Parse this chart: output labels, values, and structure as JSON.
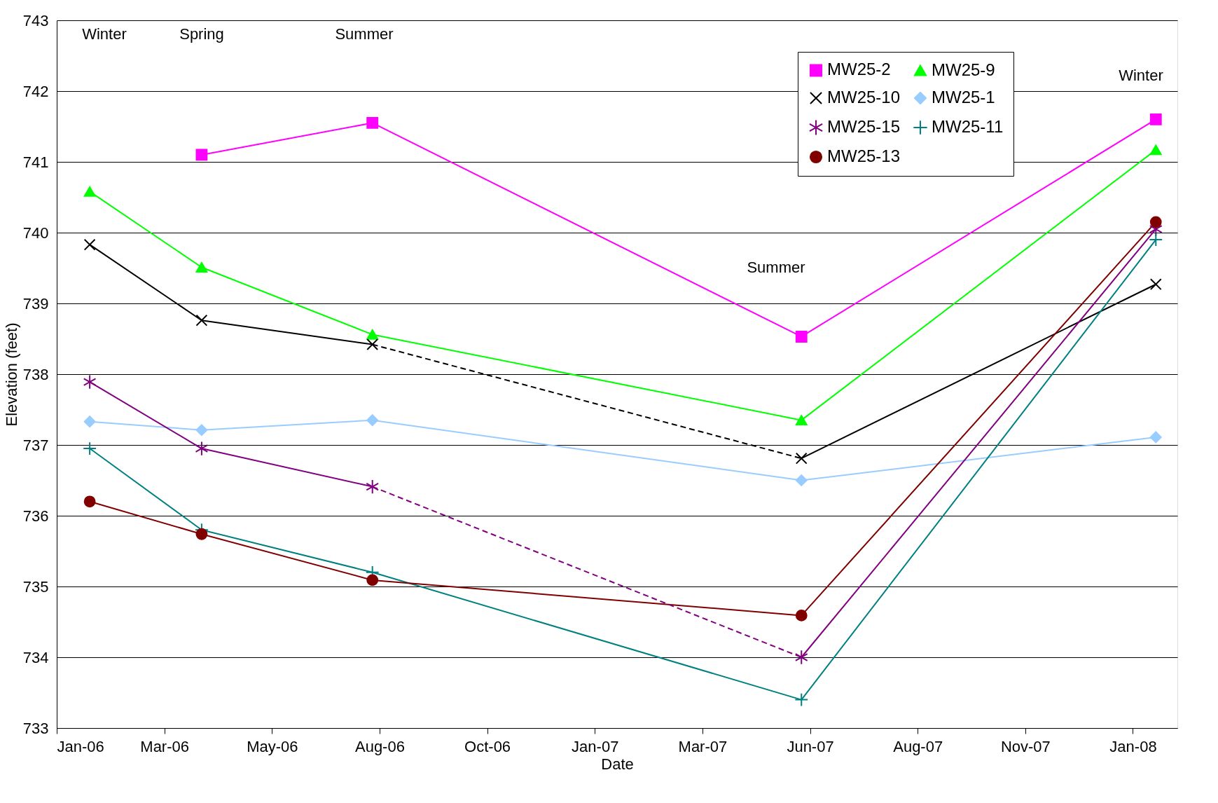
{
  "chart_data": {
    "type": "line",
    "xlabel": "Date",
    "ylabel": "Elevation (feet)",
    "x": [
      "2006-01-24",
      "2006-04-12",
      "2006-08-09",
      "2007-06-04",
      "2008-02-06"
    ],
    "xlim": [
      "2006-01-01",
      "2008-02-21"
    ],
    "xticks": [
      {
        "value": "2006-01-01",
        "label": "Jan-06"
      },
      {
        "value": "2006-03-17",
        "label": "Mar-06"
      },
      {
        "value": "2006-05-31",
        "label": "May-06"
      },
      {
        "value": "2006-08-14",
        "label": "Aug-06"
      },
      {
        "value": "2006-10-28",
        "label": "Oct-06"
      },
      {
        "value": "2007-01-11",
        "label": "Jan-07"
      },
      {
        "value": "2007-03-27",
        "label": "Mar-07"
      },
      {
        "value": "2007-06-10",
        "label": "Jun-07"
      },
      {
        "value": "2007-08-24",
        "label": "Aug-07"
      },
      {
        "value": "2007-11-07",
        "label": "Nov-07"
      },
      {
        "value": "2008-01-21",
        "label": "Jan-08"
      }
    ],
    "ylim": [
      733,
      743
    ],
    "yticks": [
      733,
      734,
      735,
      736,
      737,
      738,
      739,
      740,
      741,
      742,
      743
    ],
    "grid": "y",
    "legend": "top right",
    "series": [
      {
        "name": "MW25-2",
        "color": "#ff00ff",
        "marker": "square",
        "values": [
          null,
          741.1,
          741.55,
          738.53,
          741.6
        ]
      },
      {
        "name": "MW25-9",
        "color": "#00ff00",
        "marker": "triangle",
        "values": [
          740.58,
          739.51,
          738.56,
          737.35,
          741.17
        ]
      },
      {
        "name": "MW25-10",
        "color": "#000000",
        "marker": "cross",
        "line_style": [
          "solid",
          "solid",
          "dashed",
          "solid"
        ],
        "values": [
          739.83,
          738.76,
          738.42,
          736.81,
          739.27
        ]
      },
      {
        "name": "MW25-1",
        "color": "#99ccff",
        "marker": "diamond",
        "values": [
          737.33,
          737.21,
          737.35,
          736.5,
          737.11
        ]
      },
      {
        "name": "MW25-15",
        "color": "#800080",
        "marker": "cross",
        "line_style": [
          "solid",
          "solid",
          "dashed",
          "solid"
        ],
        "values": [
          737.89,
          736.95,
          736.41,
          734.0,
          740.05
        ]
      },
      {
        "name": "MW25-11",
        "color": "#008080",
        "marker": "plus",
        "values": [
          736.95,
          735.8,
          735.2,
          733.4,
          739.9
        ]
      },
      {
        "name": "MW25-13",
        "color": "#800000",
        "marker": "circle",
        "values": [
          736.2,
          735.74,
          735.09,
          734.59,
          740.15
        ]
      }
    ],
    "annotations": [
      "Winter",
      "Spring",
      "Summer",
      "Summer",
      "Winter"
    ]
  }
}
